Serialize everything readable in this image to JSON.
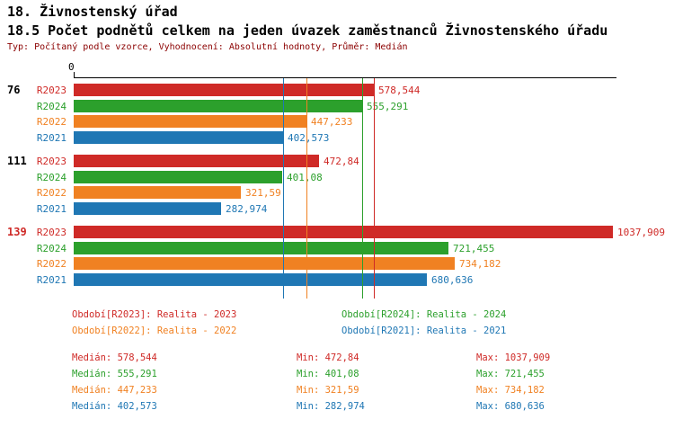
{
  "title": "18. Živnostenský úřad",
  "subtitle": "18.5 Počet podnětů celkem na jeden úvazek zaměstnanců Živnostenského úřadu",
  "meta": "Typ: Počítaný podle vzorce, Vyhodnocení: Absolutní hodnoty, Průměr: Medián",
  "colors": {
    "R2023": "#cf2a27",
    "R2024": "#2ca02c",
    "R2022": "#f08122",
    "R2021": "#1f77b4"
  },
  "chart_data": {
    "type": "bar",
    "orientation": "horizontal",
    "x_axis": {
      "zero_label": "0",
      "xlim": [
        0,
        1045
      ],
      "grid": false
    },
    "series_order": [
      "R2023",
      "R2024",
      "R2022",
      "R2021"
    ],
    "groups": [
      {
        "label": "76",
        "label_color": "#000000",
        "bars": [
          {
            "series": "R2023",
            "value": 578.544,
            "display": "578,544"
          },
          {
            "series": "R2024",
            "value": 555.291,
            "display": "555,291"
          },
          {
            "series": "R2022",
            "value": 447.233,
            "display": "447,233"
          },
          {
            "series": "R2021",
            "value": 402.573,
            "display": "402,573"
          }
        ]
      },
      {
        "label": "111",
        "label_color": "#000000",
        "bars": [
          {
            "series": "R2023",
            "value": 472.84,
            "display": "472,84"
          },
          {
            "series": "R2024",
            "value": 401.08,
            "display": "401,08"
          },
          {
            "series": "R2022",
            "value": 321.59,
            "display": "321,59"
          },
          {
            "series": "R2021",
            "value": 282.974,
            "display": "282,974"
          }
        ]
      },
      {
        "label": "139",
        "label_color": "#cf2a27",
        "bars": [
          {
            "series": "R2023",
            "value": 1037.909,
            "display": "1037,909"
          },
          {
            "series": "R2024",
            "value": 721.455,
            "display": "721,455"
          },
          {
            "series": "R2022",
            "value": 734.182,
            "display": "734,182"
          },
          {
            "series": "R2021",
            "value": 680.636,
            "display": "680,636"
          }
        ]
      }
    ],
    "median_lines": [
      {
        "series": "R2023",
        "value": 578.544
      },
      {
        "series": "R2024",
        "value": 555.291
      },
      {
        "series": "R2022",
        "value": 447.233
      },
      {
        "series": "R2021",
        "value": 402.573
      }
    ]
  },
  "legend": [
    {
      "series": "R2023",
      "label": "Období[R2023]: Realita - 2023"
    },
    {
      "series": "R2024",
      "label": "Období[R2024]: Realita - 2024"
    },
    {
      "series": "R2022",
      "label": "Období[R2022]: Realita - 2022"
    },
    {
      "series": "R2021",
      "label": "Období[R2021]: Realita - 2021"
    }
  ],
  "stats": [
    {
      "series": "R2023",
      "median": "Medián: 578,544",
      "min": "Min: 472,84",
      "max": "Max: 1037,909"
    },
    {
      "series": "R2024",
      "median": "Medián: 555,291",
      "min": "Min: 401,08",
      "max": "Max: 721,455"
    },
    {
      "series": "R2022",
      "median": "Medián: 447,233",
      "min": "Min: 321,59",
      "max": "Max: 734,182"
    },
    {
      "series": "R2021",
      "median": "Medián: 402,573",
      "min": "Min: 282,974",
      "max": "Max: 680,636"
    }
  ]
}
